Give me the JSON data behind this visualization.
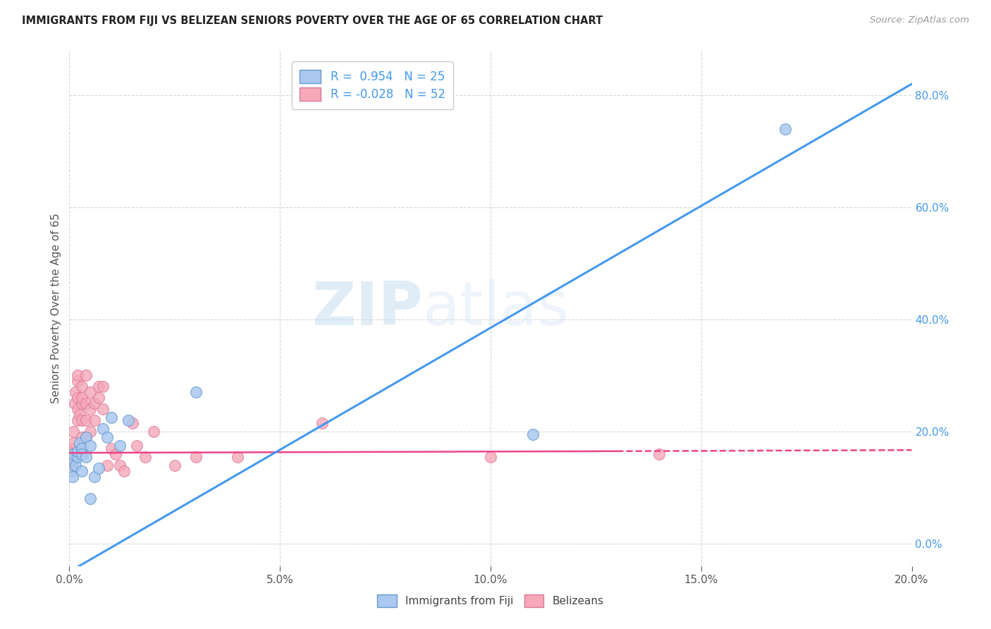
{
  "title": "IMMIGRANTS FROM FIJI VS BELIZEAN SENIORS POVERTY OVER THE AGE OF 65 CORRELATION CHART",
  "source": "Source: ZipAtlas.com",
  "ylabel": "Seniors Poverty Over the Age of 65",
  "R1": 0.954,
  "N1": 25,
  "R2": -0.028,
  "N2": 52,
  "color_fiji": "#aac8f0",
  "color_fiji_edge": "#6699cc",
  "color_fiji_line": "#4499ee",
  "color_belize": "#f4a8b8",
  "color_belize_edge": "#dd7799",
  "color_belize_line": "#ee4488",
  "xlim": [
    0.0,
    0.2
  ],
  "ylim": [
    -0.04,
    0.88
  ],
  "xticks": [
    0.0,
    0.05,
    0.1,
    0.15,
    0.2
  ],
  "yticks": [
    0.0,
    0.2,
    0.4,
    0.6,
    0.8
  ],
  "fiji_x": [
    0.0005,
    0.001,
    0.0008,
    0.001,
    0.0015,
    0.002,
    0.002,
    0.0025,
    0.003,
    0.003,
    0.003,
    0.004,
    0.004,
    0.005,
    0.005,
    0.006,
    0.007,
    0.008,
    0.009,
    0.01,
    0.012,
    0.014,
    0.03,
    0.11,
    0.17
  ],
  "fiji_y": [
    0.13,
    0.15,
    0.12,
    0.16,
    0.14,
    0.155,
    0.165,
    0.18,
    0.13,
    0.17,
    0.16,
    0.19,
    0.155,
    0.08,
    0.175,
    0.12,
    0.135,
    0.205,
    0.19,
    0.225,
    0.175,
    0.22,
    0.27,
    0.195,
    0.74
  ],
  "belize_x": [
    0.0003,
    0.0005,
    0.0006,
    0.0008,
    0.001,
    0.001,
    0.001,
    0.001,
    0.001,
    0.001,
    0.0012,
    0.0015,
    0.002,
    0.002,
    0.002,
    0.002,
    0.002,
    0.0025,
    0.003,
    0.003,
    0.003,
    0.003,
    0.003,
    0.003,
    0.004,
    0.004,
    0.004,
    0.004,
    0.005,
    0.005,
    0.005,
    0.006,
    0.006,
    0.007,
    0.007,
    0.008,
    0.008,
    0.009,
    0.01,
    0.011,
    0.012,
    0.013,
    0.015,
    0.016,
    0.018,
    0.02,
    0.025,
    0.03,
    0.04,
    0.06,
    0.1,
    0.14
  ],
  "belize_y": [
    0.155,
    0.16,
    0.14,
    0.17,
    0.155,
    0.16,
    0.2,
    0.18,
    0.155,
    0.15,
    0.25,
    0.27,
    0.26,
    0.29,
    0.3,
    0.24,
    0.22,
    0.23,
    0.28,
    0.25,
    0.22,
    0.19,
    0.17,
    0.26,
    0.25,
    0.22,
    0.19,
    0.3,
    0.27,
    0.24,
    0.2,
    0.25,
    0.22,
    0.28,
    0.26,
    0.28,
    0.24,
    0.14,
    0.17,
    0.16,
    0.14,
    0.13,
    0.215,
    0.175,
    0.155,
    0.2,
    0.14,
    0.155,
    0.155,
    0.215,
    0.155,
    0.16
  ],
  "fiji_line_x0": 0.0,
  "fiji_line_y0": -0.05,
  "fiji_line_x1": 0.2,
  "fiji_line_y1": 0.82,
  "belize_line_x0": 0.0,
  "belize_line_y0": 0.162,
  "belize_line_x1": 0.13,
  "belize_line_y1": 0.165,
  "belize_line_dash_x0": 0.13,
  "belize_line_dash_y0": 0.165,
  "belize_line_dash_x1": 0.2,
  "belize_line_dash_y1": 0.167,
  "legend_label_1": "Immigrants from Fiji",
  "legend_label_2": "Belizeans",
  "watermark_zip": "ZIP",
  "watermark_atlas": "atlas"
}
